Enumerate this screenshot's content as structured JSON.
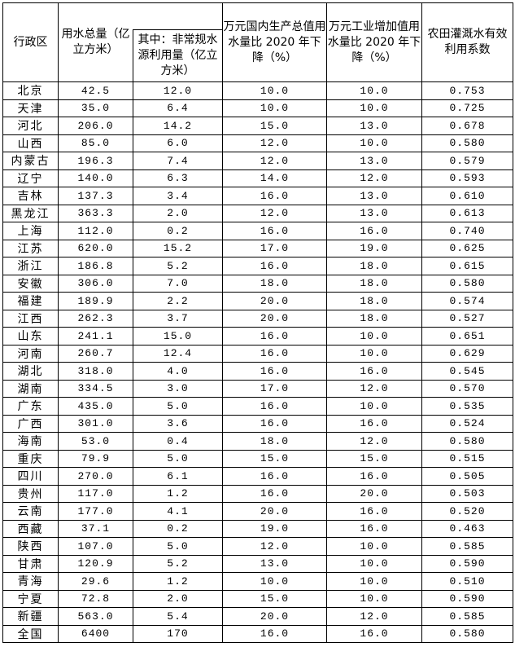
{
  "headers": {
    "region": "行政区",
    "total_water": "用水总量（亿立方米）",
    "unconventional": "其中：非常规水源利用量（亿立方米）",
    "gdp_reduction": "万元国内生产总值用水量比 2020 年下降（%）",
    "industry_reduction": "万元工业增加值用水量比 2020 年下降（%）",
    "irrigation": "农田灌溉水有效利用系数"
  },
  "rows": [
    [
      "北京",
      "42.5",
      "12.0",
      "10.0",
      "10.0",
      "0.753"
    ],
    [
      "天津",
      "35.0",
      "6.4",
      "10.0",
      "10.0",
      "0.725"
    ],
    [
      "河北",
      "206.0",
      "14.2",
      "15.0",
      "13.0",
      "0.678"
    ],
    [
      "山西",
      "85.0",
      "6.0",
      "12.0",
      "10.0",
      "0.580"
    ],
    [
      "内蒙古",
      "196.3",
      "7.4",
      "12.0",
      "13.0",
      "0.579"
    ],
    [
      "辽宁",
      "140.0",
      "6.3",
      "14.0",
      "12.0",
      "0.593"
    ],
    [
      "吉林",
      "137.3",
      "3.4",
      "16.0",
      "13.0",
      "0.610"
    ],
    [
      "黑龙江",
      "363.3",
      "2.0",
      "12.0",
      "13.0",
      "0.613"
    ],
    [
      "上海",
      "112.0",
      "0.2",
      "16.0",
      "16.0",
      "0.740"
    ],
    [
      "江苏",
      "620.0",
      "15.2",
      "17.0",
      "19.0",
      "0.625"
    ],
    [
      "浙江",
      "186.8",
      "5.2",
      "16.0",
      "18.0",
      "0.615"
    ],
    [
      "安徽",
      "306.0",
      "7.0",
      "18.0",
      "18.0",
      "0.580"
    ],
    [
      "福建",
      "189.9",
      "2.2",
      "20.0",
      "18.0",
      "0.574"
    ],
    [
      "江西",
      "262.3",
      "3.7",
      "20.0",
      "18.0",
      "0.527"
    ],
    [
      "山东",
      "241.1",
      "15.0",
      "16.0",
      "10.0",
      "0.651"
    ],
    [
      "河南",
      "260.7",
      "12.4",
      "16.0",
      "10.0",
      "0.629"
    ],
    [
      "湖北",
      "318.0",
      "4.0",
      "16.0",
      "16.0",
      "0.545"
    ],
    [
      "湖南",
      "334.5",
      "3.0",
      "17.0",
      "12.0",
      "0.570"
    ],
    [
      "广东",
      "435.0",
      "5.0",
      "16.0",
      "10.0",
      "0.535"
    ],
    [
      "广西",
      "301.0",
      "3.6",
      "16.0",
      "16.0",
      "0.524"
    ],
    [
      "海南",
      "53.0",
      "0.4",
      "18.0",
      "12.0",
      "0.580"
    ],
    [
      "重庆",
      "79.9",
      "5.0",
      "15.0",
      "15.0",
      "0.515"
    ],
    [
      "四川",
      "270.0",
      "6.1",
      "16.0",
      "16.0",
      "0.505"
    ],
    [
      "贵州",
      "117.0",
      "1.2",
      "16.0",
      "20.0",
      "0.503"
    ],
    [
      "云南",
      "177.0",
      "4.1",
      "20.0",
      "16.0",
      "0.520"
    ],
    [
      "西藏",
      "37.1",
      "0.2",
      "19.0",
      "16.0",
      "0.463"
    ],
    [
      "陕西",
      "107.0",
      "5.0",
      "12.0",
      "10.0",
      "0.585"
    ],
    [
      "甘肃",
      "120.9",
      "5.2",
      "13.0",
      "10.0",
      "0.590"
    ],
    [
      "青海",
      "29.6",
      "1.2",
      "10.0",
      "10.0",
      "0.510"
    ],
    [
      "宁夏",
      "72.8",
      "2.0",
      "15.0",
      "10.0",
      "0.590"
    ],
    [
      "新疆",
      "563.0",
      "5.4",
      "20.0",
      "12.0",
      "0.585"
    ],
    [
      "全国",
      "6400",
      "170",
      "16.0",
      "16.0",
      "0.580"
    ]
  ]
}
